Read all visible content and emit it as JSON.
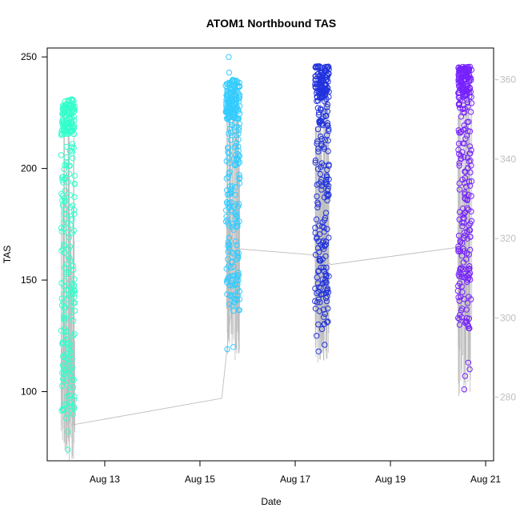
{
  "chart_data": {
    "type": "scatter",
    "title": "ATOM1 Northbound TAS",
    "xlabel": "Date",
    "ylabel": "TAS",
    "x_date_ticks": [
      {
        "date": "2012-08-13",
        "label": "Aug 13"
      },
      {
        "date": "2012-08-15",
        "label": "Aug 15"
      },
      {
        "date": "2012-08-17",
        "label": "Aug 17"
      },
      {
        "date": "2012-08-19",
        "label": "Aug 19"
      },
      {
        "date": "2012-08-21",
        "label": "Aug 21"
      }
    ],
    "xlim": [
      "2012-08-11 19:00",
      "2012-08-21 04:00"
    ],
    "ylim": [
      69,
      254
    ],
    "y_ticks": [
      100,
      150,
      200,
      250
    ],
    "y2lim": [
      264,
      368
    ],
    "y2_ticks": [
      280,
      300,
      320,
      340,
      360
    ],
    "grid": false,
    "legend": "none",
    "colors": {
      "gray_series": "#bebebe",
      "clusters": [
        "#33ffcc",
        "#33ccff",
        "#2233dd",
        "#7722ff"
      ]
    },
    "mean_line": {
      "color": "#bebebe",
      "x": [
        "2012-08-12 07:00",
        "2012-08-15 11:00",
        "2012-08-15 19:00",
        "2012-08-17 13:00",
        "2012-08-17 18:00",
        "2012-08-20 13:00"
      ],
      "y": [
        85,
        97,
        164,
        161,
        157,
        165
      ]
    },
    "clusters": [
      {
        "start": "2012-08-12 02:00",
        "end": "2012-08-12 09:00",
        "color": "#33ffcc",
        "dense": [
          215,
          231
        ],
        "spread": [
          88,
          212
        ],
        "extra": [
          82,
          74,
          102,
          90,
          122
        ]
      },
      {
        "start": "2012-08-15 13:00",
        "end": "2012-08-15 20:00",
        "color": "#33ccff",
        "dense": [
          222,
          240
        ],
        "spread": [
          136,
          232
        ],
        "extra": [
          119,
          120,
          250,
          243
        ]
      },
      {
        "start": "2012-08-17 10:00",
        "end": "2012-08-17 17:00",
        "color": "#2233dd",
        "dense": [
          232,
          246
        ],
        "spread": [
          130,
          232
        ],
        "extra": [
          118,
          121,
          125,
          128
        ]
      },
      {
        "start": "2012-08-20 10:00",
        "end": "2012-08-20 17:00",
        "color": "#7722ff",
        "dense": [
          232,
          246
        ],
        "spread": [
          127,
          232
        ],
        "extra": [
          101,
          107,
          110,
          113
        ]
      }
    ]
  }
}
